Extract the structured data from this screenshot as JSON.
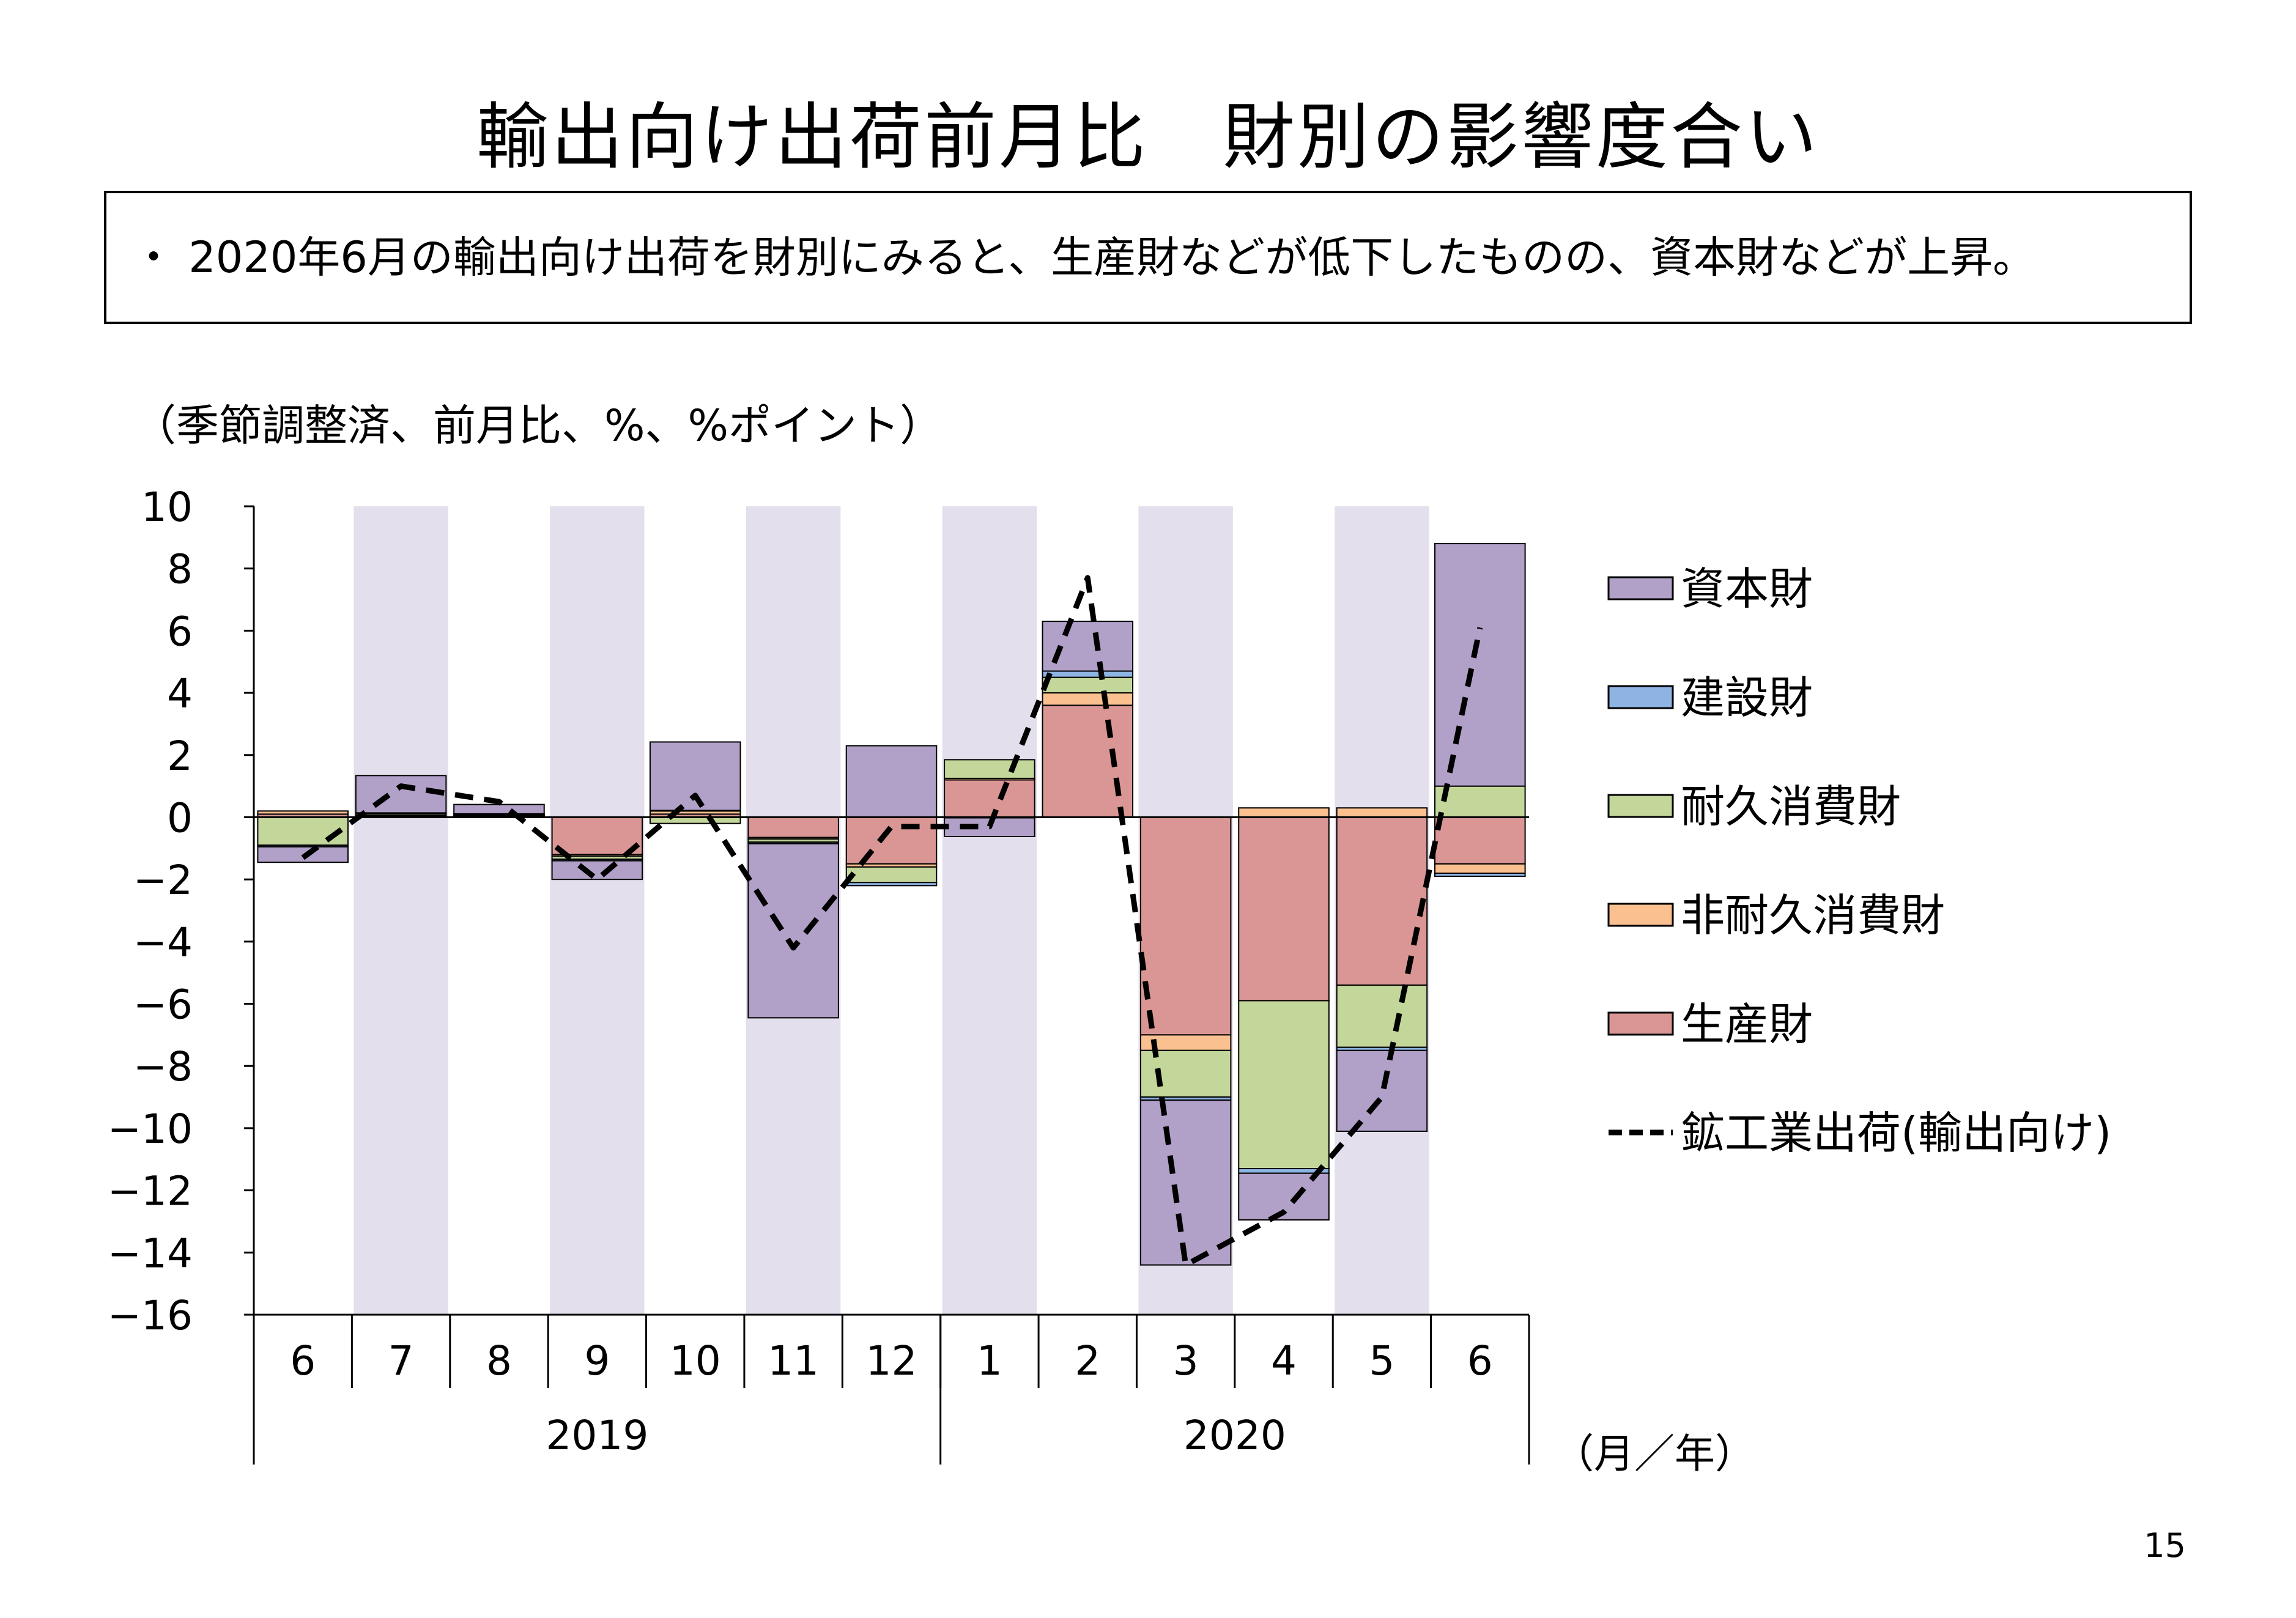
{
  "title": "輸出向け出荷前月比　財別の影響度合い",
  "summary": "・ 2020年6月の輸出向け出荷を財別にみると、生産財などが低下したものの、資本財などが上昇。",
  "units_note": "（季節調整済、前月比、%、%ポイント）",
  "page_number": "15",
  "chart_data": {
    "type": "bar",
    "stacked": true,
    "categories": [
      "6",
      "7",
      "8",
      "9",
      "10",
      "11",
      "12",
      "1",
      "2",
      "3",
      "4",
      "5",
      "6"
    ],
    "years": [
      {
        "label": "2019",
        "from": 0,
        "to": 6
      },
      {
        "label": "2020",
        "from": 7,
        "to": 12
      }
    ],
    "x_unit_label": "（月／年）",
    "ylim": [
      -16,
      10
    ],
    "yticks": [
      "10",
      "8",
      "6",
      "4",
      "2",
      "0",
      "-2",
      "-4",
      "-6",
      "-8",
      "-10",
      "-12",
      "-14",
      "-16"
    ],
    "shaded_categories": [
      1,
      3,
      5,
      7,
      9,
      11
    ],
    "shade_color": "#e4dfec",
    "series": [
      {
        "name": "生産財",
        "color": "#da9694",
        "values": [
          0.1,
          0.05,
          0.05,
          -1.2,
          0.1,
          -0.65,
          -1.5,
          1.2,
          3.6,
          -7.0,
          -5.9,
          -5.4,
          -1.5
        ]
      },
      {
        "name": "非耐久消費財",
        "color": "#fac090",
        "values": [
          0.1,
          0.02,
          0.02,
          -0.05,
          0.1,
          -0.05,
          -0.1,
          0.05,
          0.4,
          -0.5,
          0.3,
          0.3,
          -0.3
        ]
      },
      {
        "name": "耐久消費財",
        "color": "#c4d79b",
        "values": [
          -0.9,
          0.05,
          0.02,
          -0.1,
          -0.2,
          -0.1,
          -0.5,
          0.6,
          0.5,
          -1.5,
          -5.4,
          -2.0,
          1.0
        ]
      },
      {
        "name": "建設財",
        "color": "#8db4e2",
        "values": [
          -0.05,
          0.02,
          0.02,
          -0.05,
          0.02,
          -0.05,
          -0.1,
          -0.02,
          0.2,
          -0.1,
          -0.15,
          -0.1,
          -0.1
        ]
      },
      {
        "name": "資本財",
        "color": "#b1a0c7",
        "values": [
          -0.5,
          1.2,
          0.3,
          -0.6,
          2.2,
          -5.6,
          2.3,
          -0.6,
          1.6,
          -5.3,
          -1.5,
          -2.6,
          7.8
        ]
      }
    ],
    "line": {
      "name": "鉱工業出荷(輸出向け)",
      "values": [
        -1.3,
        1.0,
        0.5,
        -2.0,
        0.7,
        -4.2,
        -0.3,
        -0.3,
        7.7,
        -14.4,
        -12.7,
        -9.0,
        6.1
      ]
    },
    "legend_order": [
      "資本財",
      "建設財",
      "耐久消費財",
      "非耐久消費財",
      "生産財",
      "鉱工業出荷(輸出向け)"
    ],
    "legend_position": "right"
  }
}
